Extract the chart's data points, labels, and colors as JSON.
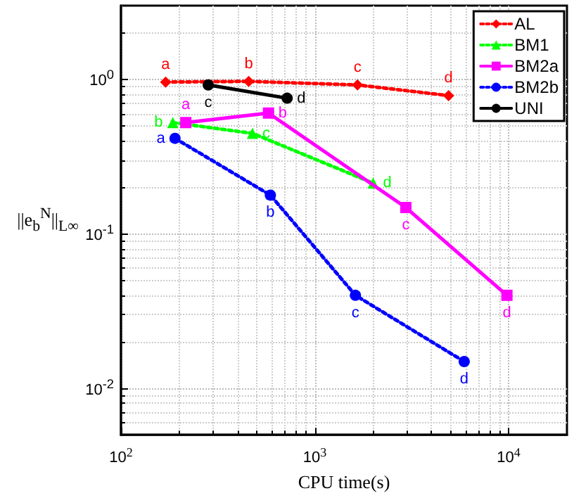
{
  "chart_data": {
    "type": "line",
    "xlabel": "CPU time(s)",
    "ylabel": "||e$_{b}$$^{N}$||$_{L∞}$",
    "log": "xy",
    "grid": true,
    "legend": "top right",
    "xlim": [
      100,
      20000
    ],
    "xticks": [
      {
        "value": 100,
        "label": "10$^{2}$"
      },
      {
        "value": 1000,
        "label": "10$^{3}$"
      },
      {
        "value": 10000,
        "label": "10$^{4}$"
      }
    ],
    "ylim": [
      0.005,
      3
    ],
    "yticks": [
      {
        "value": 0.01,
        "label": "10$^{-2}$"
      },
      {
        "value": 0.1,
        "label": "10$^{-1}$"
      },
      {
        "value": 1,
        "label": "10$^{0}$"
      }
    ],
    "series": [
      {
        "name": "AL",
        "color": "#ff0000",
        "marker": "diamond",
        "line_style": "dotted",
        "x": [
          170,
          456,
          1660,
          4900
        ],
        "values": [
          0.96,
          0.97,
          0.92,
          0.785
        ],
        "value_labels": [
          "a",
          "b",
          "c",
          "d"
        ]
      },
      {
        "name": "BM1",
        "color": "#00ff00",
        "marker": "triangle",
        "line_style": "dotted",
        "x": [
          185,
          477,
          2000
        ],
        "values": [
          0.525,
          0.447,
          0.213
        ],
        "value_labels": [
          "b",
          "c",
          "d"
        ]
      },
      {
        "name": "BM2a",
        "color": "#ff00ff",
        "marker": "square",
        "line_style": "solid",
        "x": [
          216,
          577,
          2950,
          9800
        ],
        "values": [
          0.525,
          0.605,
          0.148,
          0.04
        ],
        "value_labels": [
          "a",
          "b",
          "c",
          "d"
        ]
      },
      {
        "name": "BM2b",
        "color": "#0000ff",
        "marker": "circle",
        "line_style": "dotted",
        "x": [
          190,
          590,
          1620,
          5900
        ],
        "values": [
          0.415,
          0.178,
          0.04,
          0.0149
        ],
        "value_labels": [
          "a",
          "b",
          "c",
          "d"
        ]
      },
      {
        "name": "UNI",
        "color": "#000000",
        "marker": "circle",
        "line_style": "solid",
        "x": [
          282,
          720
        ],
        "values": [
          0.92,
          0.755
        ],
        "value_labels": [
          "c",
          "d"
        ]
      }
    ]
  }
}
